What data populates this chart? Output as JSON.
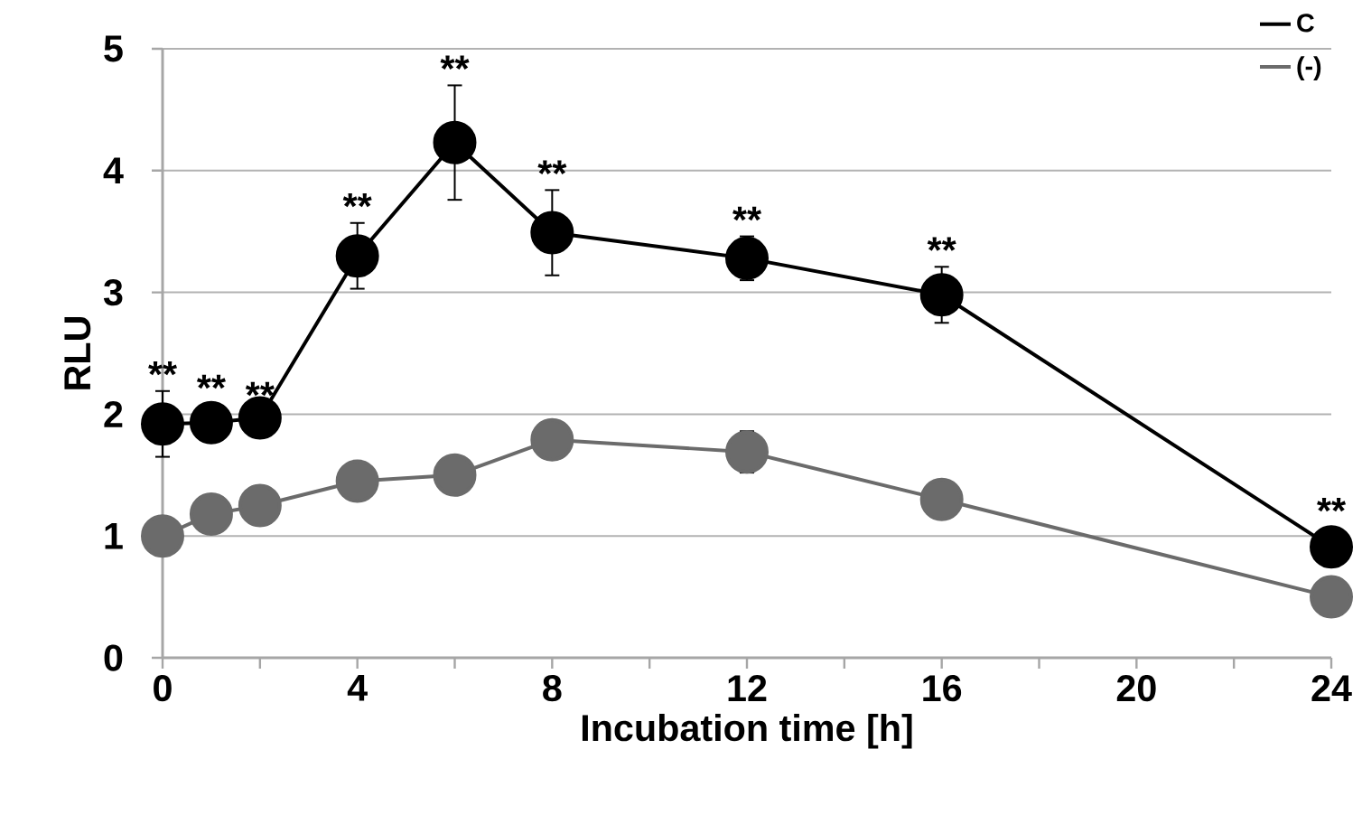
{
  "chart_data": {
    "type": "line",
    "xlabel": "Incubation time [h]",
    "ylabel": "RLU",
    "x": [
      0,
      1,
      2,
      4,
      6,
      8,
      12,
      16,
      24
    ],
    "series": [
      {
        "name": "C",
        "color": "#000000",
        "values": [
          1.92,
          1.93,
          1.97,
          3.3,
          4.23,
          3.49,
          3.28,
          2.98,
          0.91
        ],
        "errors": [
          0.27,
          0.15,
          0.05,
          0.27,
          0.47,
          0.35,
          0.18,
          0.23,
          null
        ]
      },
      {
        "name": "(-)",
        "color": "#6b6b6b",
        "values": [
          1.0,
          1.18,
          1.25,
          1.45,
          1.5,
          1.79,
          1.69,
          1.3,
          0.5
        ],
        "errors": [
          null,
          null,
          0.16,
          null,
          null,
          null,
          0.17,
          null,
          null
        ]
      }
    ],
    "xlim": [
      0,
      24
    ],
    "ylim": [
      0,
      5
    ],
    "xticks": [
      0,
      {
        "value": 2,
        "label": null
      },
      4,
      {
        "value": 6,
        "label": null
      },
      8,
      {
        "value": 10,
        "label": null
      },
      12,
      {
        "value": 14,
        "label": null
      },
      16,
      {
        "value": 18,
        "label": null
      },
      20,
      {
        "value": 22,
        "label": null
      },
      24
    ],
    "yticks": [
      0,
      1,
      2,
      3,
      4,
      5
    ],
    "grid": "y",
    "legend": "top right",
    "marker": "circle",
    "line_style": "solid",
    "annotations": [
      {
        "text": "**",
        "x": 0,
        "y": 2.19
      },
      {
        "text": "**",
        "x": 1,
        "y": 2.08
      },
      {
        "text": "**",
        "x": 2,
        "y": 2.02
      },
      {
        "text": "**",
        "x": 4,
        "y": 3.57
      },
      {
        "text": "**",
        "x": 6,
        "y": 4.7
      },
      {
        "text": "**",
        "x": 8,
        "y": 3.84
      },
      {
        "text": "**",
        "x": 12,
        "y": 3.46
      },
      {
        "text": "**",
        "x": 16,
        "y": 3.21
      },
      {
        "text": "**",
        "x": 24,
        "y": 1.07
      }
    ]
  }
}
